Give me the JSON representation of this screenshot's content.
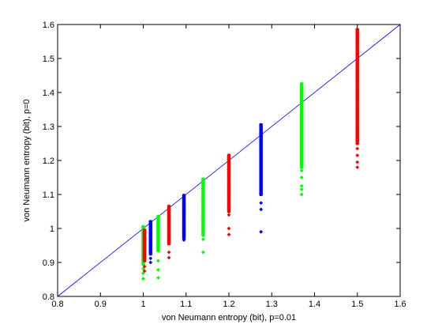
{
  "chart_data": {
    "type": "scatter",
    "title": "",
    "xlabel": "von Neumann entropy (bit), p=0.01",
    "ylabel": "von Neumann entropy (bit), p=0",
    "xlim": [
      0.8,
      1.6
    ],
    "ylim": [
      0.8,
      1.6
    ],
    "xticks": [
      "0.8",
      "0.9",
      "1",
      "1.1",
      "1.2",
      "1.3",
      "1.4",
      "1.5",
      "1.6"
    ],
    "yticks": [
      "0.8",
      "0.9",
      "1",
      "1.1",
      "1.2",
      "1.3",
      "1.4",
      "1.5",
      "1.6"
    ],
    "grid": false,
    "reference_line": {
      "from": [
        0.8,
        0.8
      ],
      "to": [
        1.6,
        1.6
      ],
      "color": "#0000ff"
    },
    "series": [
      {
        "x": 1.0,
        "color": "#00ff00",
        "solid_range": [
          0.895,
          1.005
        ],
        "outliers": [
          0.882,
          0.868,
          0.852
        ]
      },
      {
        "x": 1.003,
        "color": "#ff0000",
        "solid_range": [
          0.905,
          0.995
        ],
        "outliers": [
          0.888,
          0.875
        ]
      },
      {
        "x": 1.017,
        "color": "#0000ff",
        "solid_range": [
          0.925,
          1.02
        ],
        "outliers": [
          0.912,
          0.9
        ]
      },
      {
        "x": 1.035,
        "color": "#00ff00",
        "solid_range": [
          0.935,
          1.035
        ],
        "outliers": [
          0.905,
          0.878,
          0.855
        ]
      },
      {
        "x": 1.06,
        "color": "#ff0000",
        "solid_range": [
          0.955,
          1.065
        ],
        "outliers": [
          0.93,
          0.914
        ]
      },
      {
        "x": 1.095,
        "color": "#0000ff",
        "solid_range": [
          0.972,
          1.097
        ],
        "outliers": [
          0.966
        ]
      },
      {
        "x": 1.14,
        "color": "#00ff00",
        "solid_range": [
          0.98,
          1.145
        ],
        "outliers": [
          0.968,
          0.93
        ]
      },
      {
        "x": 1.2,
        "color": "#ff0000",
        "solid_range": [
          1.05,
          1.215
        ],
        "outliers": [
          1.04,
          1.0,
          0.982
        ]
      },
      {
        "x": 1.275,
        "color": "#0000ff",
        "solid_range": [
          1.1,
          1.305
        ],
        "outliers": [
          1.075,
          1.056,
          0.99
        ]
      },
      {
        "x": 1.37,
        "color": "#00ff00",
        "solid_range": [
          1.18,
          1.425
        ],
        "outliers": [
          1.17,
          1.15,
          1.125,
          1.115,
          1.1
        ]
      },
      {
        "x": 1.5,
        "color": "#ff0000",
        "solid_range": [
          1.25,
          1.585
        ],
        "outliers": [
          1.235,
          1.215,
          1.195,
          1.18
        ]
      }
    ]
  }
}
